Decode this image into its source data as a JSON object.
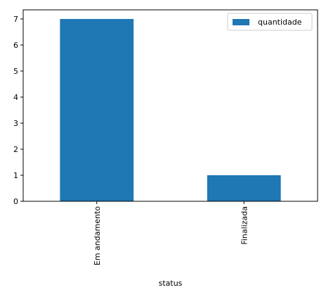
{
  "chart_data": {
    "type": "bar",
    "categories": [
      "Em andamento",
      "Finalizada"
    ],
    "series": [
      {
        "name": "quantidade",
        "values": [
          7,
          1
        ],
        "color": "#1f77b4"
      }
    ],
    "title": "",
    "xlabel": "status",
    "ylabel": "",
    "ylim": [
      0,
      7.35
    ],
    "yticks": [
      "0",
      "1",
      "2",
      "3",
      "4",
      "5",
      "6",
      "7"
    ],
    "grid": false,
    "legend": "top-right",
    "x_tick_rotation": "vertical"
  }
}
